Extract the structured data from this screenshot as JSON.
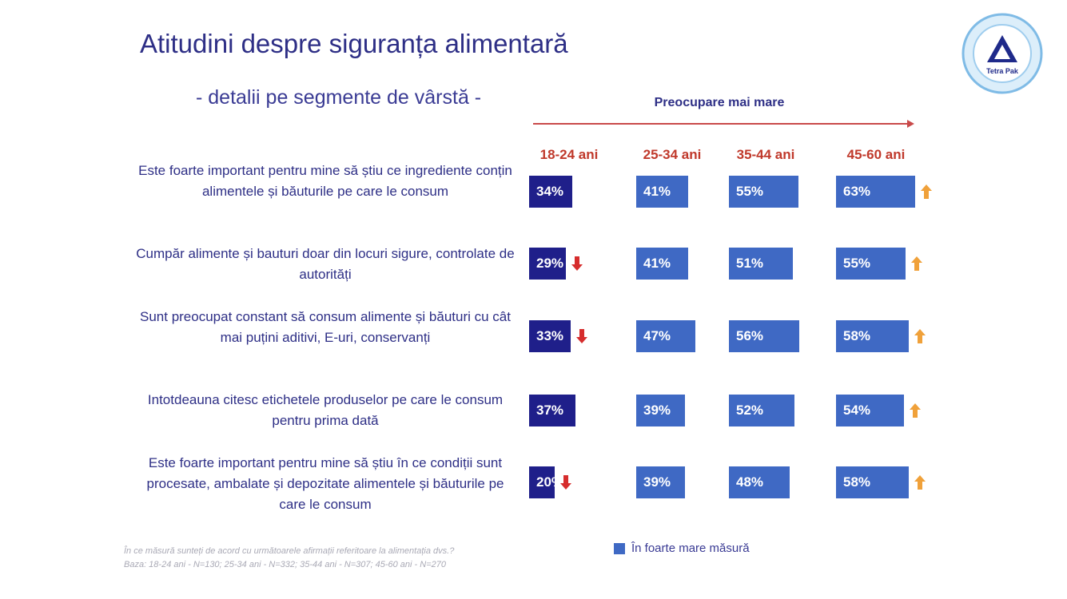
{
  "title": "Atitudini despre siguranța alimentară",
  "subtitle": "- detalii pe segmente de vârstă -",
  "concern_label": "Preocupare mai mare",
  "colors": {
    "youngest_bar": "#1f1f8a",
    "other_bars": "#3f69c4",
    "up_arrow": "#f0a13a",
    "down_arrow": "#d62d2d",
    "header_red": "#c0392b"
  },
  "chart_data": {
    "type": "bar",
    "orientation": "horizontal",
    "categories": [
      "18-24 ani",
      "25-34 ani",
      "35-44 ani",
      "45-60 ani"
    ],
    "series_name": "În foarte mare măsură",
    "unit": "%",
    "rows": [
      {
        "statement": "Este foarte important pentru mine să știu ce ingrediente conțin alimentele și băuturile pe care le consum",
        "values": [
          34,
          41,
          55,
          63
        ],
        "labels": [
          "34%",
          "41%",
          "55%",
          "63%"
        ],
        "trend": [
          "",
          "",
          "",
          "up"
        ]
      },
      {
        "statement": "Cumpăr alimente și bauturi doar din locuri sigure, controlate de autorități",
        "values": [
          29,
          41,
          51,
          55
        ],
        "labels": [
          "29%",
          "41%",
          "51%",
          "55%"
        ],
        "trend": [
          "down",
          "",
          "",
          "up"
        ]
      },
      {
        "statement": "Sunt preocupat constant să consum alimente și băuturi cu cât mai puțini aditivi, E-uri, conservanți",
        "values": [
          33,
          47,
          56,
          58
        ],
        "labels": [
          "33%",
          "47%",
          "56%",
          "58%"
        ],
        "trend": [
          "down",
          "",
          "",
          "up"
        ]
      },
      {
        "statement": "Intotdeauna citesc etichetele produselor pe care le consum pentru prima dată",
        "values": [
          37,
          39,
          52,
          54
        ],
        "labels": [
          "37%",
          "39%",
          "52%",
          "54%"
        ],
        "trend": [
          "",
          "",
          "",
          "up"
        ]
      },
      {
        "statement": "Este foarte important pentru mine să știu în ce condiții sunt procesate, ambalate și depozitate alimentele și băuturile pe care le consum",
        "values": [
          20,
          39,
          48,
          58
        ],
        "labels": [
          "20%",
          "39%",
          "48%",
          "58%"
        ],
        "trend": [
          "down",
          "",
          "",
          "up"
        ]
      }
    ]
  },
  "legend": {
    "label": "În foarte mare măsură"
  },
  "footnote": {
    "question": "În ce măsură sunteți de acord cu următoarele afirmații referitoare la alimentația dvs.?",
    "base": "Baza: 18-24 ani - N=130; 25-34 ani - N=332; 35-44 ani - N=307; 45-60 ani - N=270"
  },
  "logo": {
    "text": "Tetra Pak"
  }
}
